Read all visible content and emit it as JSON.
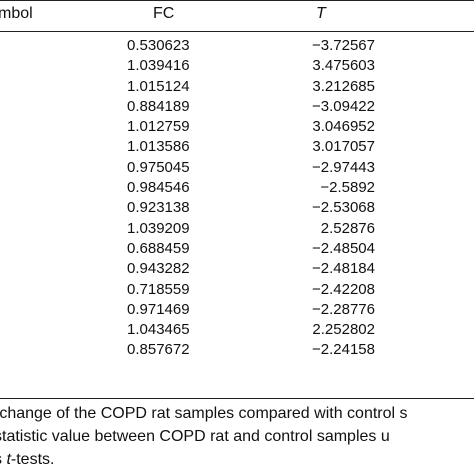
{
  "table": {
    "headers": {
      "symbol": "mbol",
      "fc": "FC",
      "t": "T"
    },
    "rows": [
      {
        "fc": "0.530623",
        "t": "−3.72567"
      },
      {
        "fc": "1.039416",
        "t": "3.475603"
      },
      {
        "fc": "1.015124",
        "t": "3.212685"
      },
      {
        "fc": "0.884189",
        "t": "−3.09422"
      },
      {
        "fc": "1.012759",
        "t": "3.046952"
      },
      {
        "fc": "1.013586",
        "t": "3.017057"
      },
      {
        "fc": "0.975045",
        "t": "−2.97443"
      },
      {
        "fc": "0.984546",
        "t": "−2.5892"
      },
      {
        "fc": "0.923138",
        "t": "−2.53068"
      },
      {
        "fc": "1.039209",
        "t": "2.52876"
      },
      {
        "fc": "0.688459",
        "t": "−2.48504"
      },
      {
        "fc": "0.943282",
        "t": "−2.48184"
      },
      {
        "fc": "0.718559",
        "t": "−2.42208"
      },
      {
        "fc": "0.971469",
        "t": "−2.28776"
      },
      {
        "fc": "1.043465",
        "t": "2.252802"
      },
      {
        "fc": "0.857672",
        "t": "−2.24158"
      }
    ]
  },
  "footnotes": {
    "line1": "-change of the COPD rat samples compared with control s",
    "line2": "statistic value between COPD rat and control samples u",
    "line3_prefix": "s ",
    "line3_italic": "t",
    "line3_suffix": "-tests."
  }
}
